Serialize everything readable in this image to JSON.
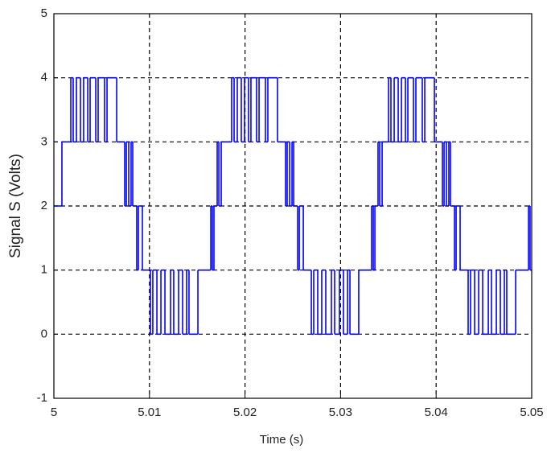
{
  "chart_data": {
    "type": "step",
    "xlabel": "Time (s)",
    "ylabel": "Signal S (Volts)",
    "xlim": [
      5,
      5.05
    ],
    "xticks": [
      5,
      5.01,
      5.02,
      5.03,
      5.04,
      5.05
    ],
    "ylim": [
      -1,
      5
    ],
    "yticks": [
      -1,
      0,
      1,
      2,
      3,
      4,
      5
    ],
    "grid": true,
    "series": [
      {
        "color": "#0000ff",
        "x": [
          5.0,
          5.00084,
          5.00177,
          5.00202,
          5.00236,
          5.00278,
          5.00311,
          5.00354,
          5.00379,
          5.00438,
          5.00463,
          5.0053,
          5.00556,
          5.00657,
          5.00741,
          5.00758,
          5.00783,
          5.00808,
          5.00825,
          5.00867,
          5.00884,
          5.00926,
          5.0101,
          5.01035,
          5.01078,
          5.0112,
          5.01162,
          5.01221,
          5.01254,
          5.01305,
          5.01347,
          5.01389,
          5.01414,
          5.01507,
          5.01642,
          5.01658,
          5.01675,
          5.01709,
          5.01726,
          5.01751,
          5.0186,
          5.01886,
          5.01919,
          5.01961,
          5.01995,
          5.02037,
          5.02062,
          5.02121,
          5.02147,
          5.02214,
          5.02239,
          5.0234,
          5.02424,
          5.02441,
          5.02467,
          5.02492,
          5.02509,
          5.02551,
          5.02568,
          5.0261,
          5.02694,
          5.02719,
          5.02761,
          5.02803,
          5.02845,
          5.02904,
          5.02938,
          5.02988,
          5.0303,
          5.03073,
          5.03098,
          5.0319,
          5.03325,
          5.03342,
          5.03359,
          5.03392,
          5.03409,
          5.03435,
          5.03502,
          5.03527,
          5.03561,
          5.03603,
          5.03637,
          5.03679,
          5.03704,
          5.03763,
          5.03788,
          5.03855,
          5.03881,
          5.03982,
          5.04066,
          5.04083,
          5.04108,
          5.04133,
          5.0415,
          5.04192,
          5.04209,
          5.04251,
          5.04335,
          5.0436,
          5.04403,
          5.04445,
          5.04487,
          5.04546,
          5.04579,
          5.0463,
          5.04672,
          5.04714,
          5.04739,
          5.04832,
          5.04967,
          5.04983
        ],
        "values": [
          2,
          3,
          4,
          3,
          4,
          3,
          4,
          3,
          4,
          3,
          4,
          3,
          4,
          3,
          2,
          3,
          2,
          3,
          2,
          1,
          2,
          1,
          0,
          1,
          0,
          1,
          0,
          1,
          0,
          1,
          0,
          1,
          0,
          1,
          2,
          1,
          2,
          3,
          2,
          3,
          4,
          3,
          4,
          3,
          4,
          3,
          4,
          3,
          4,
          3,
          4,
          3,
          2,
          3,
          2,
          3,
          2,
          1,
          2,
          1,
          0,
          1,
          0,
          1,
          0,
          1,
          0,
          1,
          0,
          1,
          0,
          1,
          2,
          1,
          2,
          3,
          2,
          3,
          4,
          3,
          4,
          3,
          4,
          3,
          4,
          3,
          4,
          3,
          4,
          3,
          2,
          3,
          2,
          3,
          2,
          1,
          2,
          1,
          0,
          1,
          0,
          1,
          0,
          1,
          0,
          1,
          0,
          1,
          0,
          1,
          2,
          1
        ]
      }
    ]
  }
}
